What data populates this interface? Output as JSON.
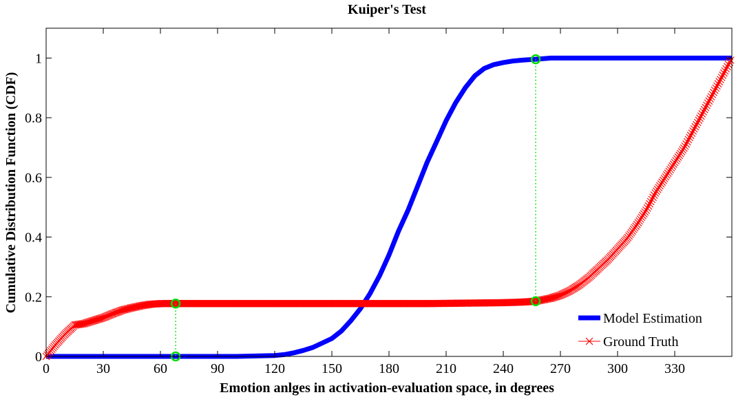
{
  "chart_data": {
    "type": "line",
    "title": "Kuiper's Test",
    "xlabel": "Emotion anlges in activation-evaluation space, in degrees",
    "ylabel": "Cumulative Distribution Function (CDF)",
    "xlim": [
      0,
      360
    ],
    "ylim": [
      0,
      1.1
    ],
    "xticks": [
      0,
      30,
      60,
      90,
      120,
      150,
      180,
      210,
      240,
      270,
      300,
      330
    ],
    "yticks": [
      0,
      0.2,
      0.4,
      0.6,
      0.8,
      1
    ],
    "ytick_labels": [
      "0",
      "0.2",
      "0.4",
      "0.6",
      "0.8",
      "1"
    ],
    "grid": false,
    "legend_position": "bottom-right",
    "series": [
      {
        "name": "Model Estimation",
        "color": "#0000ff",
        "marker": "none",
        "x": [
          0,
          100,
          120,
          125,
          130,
          135,
          140,
          145,
          150,
          155,
          160,
          165,
          170,
          175,
          180,
          185,
          190,
          195,
          200,
          205,
          210,
          215,
          220,
          225,
          230,
          235,
          240,
          245,
          250,
          257,
          265,
          300,
          330,
          360
        ],
        "y": [
          0,
          0,
          0.003,
          0.006,
          0.012,
          0.02,
          0.03,
          0.045,
          0.06,
          0.085,
          0.12,
          0.16,
          0.21,
          0.27,
          0.34,
          0.42,
          0.49,
          0.57,
          0.65,
          0.72,
          0.79,
          0.85,
          0.9,
          0.94,
          0.965,
          0.978,
          0.985,
          0.99,
          0.993,
          0.996,
          1.0,
          1.0,
          1.0,
          1.0
        ]
      },
      {
        "name": "Ground Truth",
        "color": "#ff0000",
        "marker": "x",
        "x": [
          0,
          5,
          10,
          15,
          20,
          25,
          30,
          35,
          40,
          45,
          50,
          55,
          60,
          68,
          100,
          150,
          200,
          240,
          250,
          257,
          265,
          270,
          275,
          280,
          285,
          290,
          295,
          300,
          305,
          310,
          315,
          320,
          325,
          330,
          335,
          340,
          345,
          350,
          355,
          360
        ],
        "y": [
          0,
          0.04,
          0.075,
          0.105,
          0.11,
          0.12,
          0.13,
          0.143,
          0.155,
          0.163,
          0.17,
          0.175,
          0.177,
          0.177,
          0.177,
          0.177,
          0.177,
          0.18,
          0.182,
          0.185,
          0.195,
          0.205,
          0.22,
          0.24,
          0.265,
          0.295,
          0.325,
          0.36,
          0.395,
          0.44,
          0.49,
          0.55,
          0.6,
          0.65,
          0.7,
          0.76,
          0.82,
          0.88,
          0.94,
          1.0
        ]
      }
    ],
    "markers": [
      {
        "x": 68,
        "y": 0.0,
        "color": "#00dd00"
      },
      {
        "x": 68,
        "y": 0.177,
        "color": "#00dd00"
      },
      {
        "x": 257,
        "y": 0.185,
        "color": "#00dd00"
      },
      {
        "x": 257,
        "y": 0.996,
        "color": "#00dd00"
      }
    ],
    "connectors": [
      {
        "x": 68,
        "y_from": 0.0,
        "y_to": 0.177,
        "color": "#00dd00",
        "style": "dotted"
      },
      {
        "x": 257,
        "y_from": 0.185,
        "y_to": 0.996,
        "color": "#00dd00",
        "style": "dotted"
      }
    ]
  }
}
